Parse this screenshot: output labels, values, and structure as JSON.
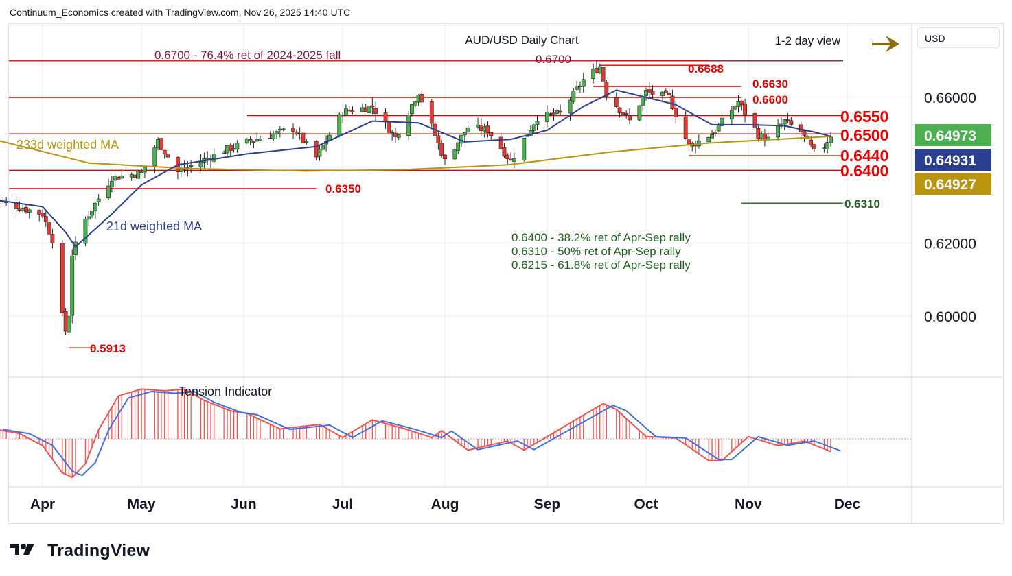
{
  "header": {
    "attribution": "Continuum_Economics created with TradingView.com, Nov 26, 2025 14:40 UTC"
  },
  "brand": {
    "name": "TradingView"
  },
  "currency_badge": "USD",
  "colors": {
    "bull": "#4caf50",
    "bear": "#e53935",
    "level_red": "#e00000",
    "ma21": "#2a3f8f",
    "ma233": "#b8940f",
    "fib_green": "#1f5e1f",
    "ret_maroon": "#7a1a3a",
    "arrow": "#8a6d12",
    "tension_red": "#ef5350",
    "tension_blue": "#3f6fe0",
    "grid": "#e9ecf2"
  },
  "chart_data": [
    {
      "type": "candlestick",
      "title": "AUD/USD Daily Chart",
      "view_label": "1-2 day view",
      "ylim": [
        0.585,
        0.676
      ],
      "y_ticks": [
        {
          "value": 0.66,
          "label": "0.66000"
        },
        {
          "value": 0.62,
          "label": "0.62000"
        },
        {
          "value": 0.6,
          "label": "0.60000"
        }
      ],
      "x_months": [
        {
          "label": "Apr",
          "date": "2025-04-01"
        },
        {
          "label": "May",
          "date": "2025-05-01"
        },
        {
          "label": "Jun",
          "date": "2025-06-01"
        },
        {
          "label": "Jul",
          "date": "2025-07-01"
        },
        {
          "label": "Aug",
          "date": "2025-08-01"
        },
        {
          "label": "Sep",
          "date": "2025-09-01"
        },
        {
          "label": "Oct",
          "date": "2025-10-01"
        },
        {
          "label": "Nov",
          "date": "2025-11-01"
        },
        {
          "label": "Dec",
          "date": "2025-12-01"
        }
      ],
      "x_range": [
        "2025-03-17",
        "2025-12-31"
      ],
      "price_badges": [
        {
          "label": "0.64973",
          "value": 0.64973,
          "color": "#4caf50"
        },
        {
          "label": "0.64931",
          "value": 0.64931,
          "color": "#2a3f8f"
        },
        {
          "label": "0.64927",
          "value": 0.64927,
          "color": "#b8940f"
        }
      ],
      "levels": [
        {
          "value": 0.67,
          "label": "0.6700",
          "from": "2025-09-16",
          "to": "2025-12-01",
          "color": "#7a1a3a"
        },
        {
          "value": 0.67,
          "label": "0.6700 - 76.4% ret of 2024-2025 fall",
          "from": "2025-03-17",
          "to": "2025-10-20",
          "color": "#e00000"
        },
        {
          "value": 0.6688,
          "label": "0.6688",
          "from": "2025-09-17",
          "to": "2025-10-20",
          "color": "#e00000"
        },
        {
          "value": 0.663,
          "label": "0.6630",
          "from": "2025-09-15",
          "to": "2025-10-30",
          "color": "#e00000"
        },
        {
          "value": 0.66,
          "label": "0.6600",
          "from": "2025-03-17",
          "to": "2025-10-30",
          "color": "#e00000"
        },
        {
          "value": 0.655,
          "label": "0.6550",
          "from": "2025-06-02",
          "to": "2025-12-01",
          "color": "#e00000"
        },
        {
          "value": 0.65,
          "label": "0.6500",
          "from": "2025-03-17",
          "to": "2025-12-01",
          "color": "#e00000"
        },
        {
          "value": 0.644,
          "label": "0.6440",
          "from": "2025-10-14",
          "to": "2025-12-01",
          "color": "#e00000"
        },
        {
          "value": 0.64,
          "label": "0.6400",
          "from": "2025-03-17",
          "to": "2025-12-01",
          "color": "#e00000"
        },
        {
          "value": 0.635,
          "label": "0.6350",
          "from": "2025-03-17",
          "to": "2025-06-23",
          "color": "#e00000"
        },
        {
          "value": 0.631,
          "label": "0.6310",
          "from": "2025-10-30",
          "to": "2025-12-01",
          "color": "#1f5e1f"
        },
        {
          "value": 0.5913,
          "label": "0.5913",
          "from": "2025-04-09",
          "to": "2025-04-17",
          "color": "#e00000"
        }
      ],
      "annotations": [
        "0.6400 - 38.2% ret of Apr-Sep rally",
        "0.6310 - 50% ret of Apr-Sep rally",
        "0.6215 - 61.8% ret of Apr-Sep rally"
      ],
      "ma_labels": {
        "ma233": "233d weighted MA",
        "ma21": "21d weighted MA"
      },
      "key_closes": [
        {
          "date": "2025-03-17",
          "close": 0.632
        },
        {
          "date": "2025-04-01",
          "close": 0.628
        },
        {
          "date": "2025-04-04",
          "close": 0.621
        },
        {
          "date": "2025-04-07",
          "close": 0.6
        },
        {
          "date": "2025-04-08",
          "close": 0.596
        },
        {
          "date": "2025-04-09",
          "close": 0.6005
        },
        {
          "date": "2025-04-10",
          "close": 0.617
        },
        {
          "date": "2025-04-14",
          "close": 0.6265
        },
        {
          "date": "2025-04-22",
          "close": 0.638
        },
        {
          "date": "2025-05-01",
          "close": 0.6393
        },
        {
          "date": "2025-05-06",
          "close": 0.648
        },
        {
          "date": "2025-05-12",
          "close": 0.6395
        },
        {
          "date": "2025-05-26",
          "close": 0.6454
        },
        {
          "date": "2025-06-02",
          "close": 0.6478
        },
        {
          "date": "2025-06-16",
          "close": 0.6515
        },
        {
          "date": "2025-06-23",
          "close": 0.6435
        },
        {
          "date": "2025-07-01",
          "close": 0.656
        },
        {
          "date": "2025-07-10",
          "close": 0.6575
        },
        {
          "date": "2025-07-17",
          "close": 0.649
        },
        {
          "date": "2025-07-24",
          "close": 0.6615
        },
        {
          "date": "2025-08-01",
          "close": 0.6425
        },
        {
          "date": "2025-08-08",
          "close": 0.6518
        },
        {
          "date": "2025-08-14",
          "close": 0.651
        },
        {
          "date": "2025-08-21",
          "close": 0.6425
        },
        {
          "date": "2025-08-29",
          "close": 0.6545
        },
        {
          "date": "2025-09-05",
          "close": 0.6555
        },
        {
          "date": "2025-09-12",
          "close": 0.6648
        },
        {
          "date": "2025-09-17",
          "close": 0.6685
        },
        {
          "date": "2025-09-19",
          "close": 0.661
        },
        {
          "date": "2025-09-26",
          "close": 0.6535
        },
        {
          "date": "2025-10-01",
          "close": 0.6615
        },
        {
          "date": "2025-10-08",
          "close": 0.66
        },
        {
          "date": "2025-10-14",
          "close": 0.6465
        },
        {
          "date": "2025-10-21",
          "close": 0.65
        },
        {
          "date": "2025-10-29",
          "close": 0.6588
        },
        {
          "date": "2025-11-04",
          "close": 0.6497
        },
        {
          "date": "2025-11-07",
          "close": 0.6485
        },
        {
          "date": "2025-11-12",
          "close": 0.6535
        },
        {
          "date": "2025-11-17",
          "close": 0.6505
        },
        {
          "date": "2025-11-21",
          "close": 0.6448
        },
        {
          "date": "2025-11-24",
          "close": 0.6466
        },
        {
          "date": "2025-11-26",
          "close": 0.6497
        }
      ],
      "ma21_points": [
        {
          "date": "2025-03-17",
          "value": 0.632
        },
        {
          "date": "2025-04-01",
          "value": 0.63
        },
        {
          "date": "2025-04-08",
          "value": 0.623
        },
        {
          "date": "2025-04-11",
          "value": 0.619
        },
        {
          "date": "2025-04-22",
          "value": 0.628
        },
        {
          "date": "2025-05-01",
          "value": 0.636
        },
        {
          "date": "2025-05-12",
          "value": 0.6415
        },
        {
          "date": "2025-06-02",
          "value": 0.6445
        },
        {
          "date": "2025-06-23",
          "value": 0.6465
        },
        {
          "date": "2025-07-10",
          "value": 0.6535
        },
        {
          "date": "2025-07-24",
          "value": 0.653
        },
        {
          "date": "2025-08-07",
          "value": 0.6478
        },
        {
          "date": "2025-08-21",
          "value": 0.6485
        },
        {
          "date": "2025-09-01",
          "value": 0.651
        },
        {
          "date": "2025-09-12",
          "value": 0.6575
        },
        {
          "date": "2025-09-22",
          "value": 0.662
        },
        {
          "date": "2025-10-01",
          "value": 0.66
        },
        {
          "date": "2025-10-10",
          "value": 0.658
        },
        {
          "date": "2025-10-21",
          "value": 0.6525
        },
        {
          "date": "2025-11-01",
          "value": 0.6525
        },
        {
          "date": "2025-11-12",
          "value": 0.6522
        },
        {
          "date": "2025-11-21",
          "value": 0.6505
        },
        {
          "date": "2025-11-26",
          "value": 0.6493
        }
      ],
      "ma233_points": [
        {
          "date": "2025-03-17",
          "value": 0.6485
        },
        {
          "date": "2025-04-15",
          "value": 0.642
        },
        {
          "date": "2025-05-15",
          "value": 0.6405
        },
        {
          "date": "2025-06-20",
          "value": 0.6398
        },
        {
          "date": "2025-07-20",
          "value": 0.6402
        },
        {
          "date": "2025-08-20",
          "value": 0.6415
        },
        {
          "date": "2025-09-20",
          "value": 0.645
        },
        {
          "date": "2025-10-20",
          "value": 0.6475
        },
        {
          "date": "2025-11-26",
          "value": 0.6493
        }
      ]
    },
    {
      "type": "line",
      "title": "Tension Indicator",
      "ylim": [
        -1.0,
        1.2
      ],
      "points": [
        {
          "date": "2025-03-17",
          "value": 0.22
        },
        {
          "date": "2025-03-25",
          "value": 0.12
        },
        {
          "date": "2025-04-01",
          "value": -0.15
        },
        {
          "date": "2025-04-07",
          "value": -0.75
        },
        {
          "date": "2025-04-10",
          "value": -0.85
        },
        {
          "date": "2025-04-14",
          "value": -0.55
        },
        {
          "date": "2025-04-18",
          "value": 0.2
        },
        {
          "date": "2025-04-24",
          "value": 0.95
        },
        {
          "date": "2025-05-01",
          "value": 1.1
        },
        {
          "date": "2025-05-08",
          "value": 1.06
        },
        {
          "date": "2025-05-14",
          "value": 1.1
        },
        {
          "date": "2025-05-20",
          "value": 0.85
        },
        {
          "date": "2025-05-28",
          "value": 0.62
        },
        {
          "date": "2025-06-02",
          "value": 0.56
        },
        {
          "date": "2025-06-12",
          "value": 0.22
        },
        {
          "date": "2025-06-24",
          "value": 0.32
        },
        {
          "date": "2025-07-01",
          "value": 0.03
        },
        {
          "date": "2025-07-10",
          "value": 0.42
        },
        {
          "date": "2025-07-20",
          "value": 0.22
        },
        {
          "date": "2025-07-28",
          "value": 0.03
        },
        {
          "date": "2025-07-31",
          "value": 0.18
        },
        {
          "date": "2025-08-08",
          "value": -0.25
        },
        {
          "date": "2025-08-14",
          "value": -0.15
        },
        {
          "date": "2025-08-20",
          "value": -0.05
        },
        {
          "date": "2025-08-25",
          "value": -0.25
        },
        {
          "date": "2025-09-01",
          "value": 0.05
        },
        {
          "date": "2025-09-08",
          "value": 0.35
        },
        {
          "date": "2025-09-18",
          "value": 0.78
        },
        {
          "date": "2025-09-22",
          "value": 0.65
        },
        {
          "date": "2025-10-01",
          "value": 0.05
        },
        {
          "date": "2025-10-10",
          "value": 0.02
        },
        {
          "date": "2025-10-20",
          "value": -0.48
        },
        {
          "date": "2025-10-24",
          "value": -0.48
        },
        {
          "date": "2025-11-01",
          "value": 0.05
        },
        {
          "date": "2025-11-10",
          "value": -0.15
        },
        {
          "date": "2025-11-18",
          "value": -0.05
        },
        {
          "date": "2025-11-26",
          "value": -0.28
        }
      ]
    }
  ]
}
